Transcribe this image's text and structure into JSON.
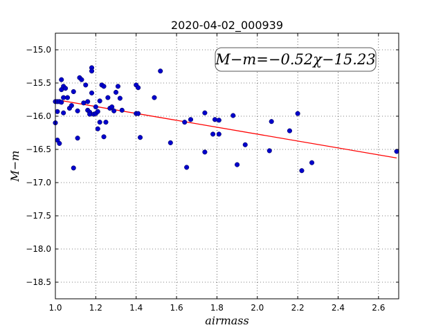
{
  "chart_data": {
    "type": "scatter",
    "title": "2020-04-02_000939",
    "xlabel": "airmass",
    "ylabel": "M−m",
    "xlim": [
      1.0,
      2.7
    ],
    "ylim": [
      -18.75,
      -14.75
    ],
    "x_ticks": [
      1.0,
      1.2,
      1.4,
      1.6,
      1.8,
      2.0,
      2.2,
      2.4,
      2.6
    ],
    "x_tick_labels": [
      "1.0",
      "1.2",
      "1.4",
      "1.6",
      "1.8",
      "2.0",
      "2.2",
      "2.4",
      "2.6"
    ],
    "y_ticks": [
      -15.0,
      -15.5,
      -16.0,
      -16.5,
      -17.0,
      -17.5,
      -18.0,
      -18.5
    ],
    "y_tick_labels": [
      "−15.0",
      "−15.5",
      "−16.0",
      "−16.5",
      "−17.0",
      "−17.5",
      "−18.0",
      "−18.5"
    ],
    "grid": true,
    "annotation": "M−m=−0.52χ−15.23",
    "fit": {
      "slope": -0.52,
      "intercept": -15.23,
      "x_range": [
        1.0,
        2.69
      ],
      "color": "#ff0000"
    },
    "marker_color": "#0000cc",
    "series": [
      {
        "x": [
          1.0,
          1.0,
          1.01,
          1.01,
          1.01,
          1.02,
          1.02,
          1.03,
          1.03,
          1.03,
          1.04,
          1.04,
          1.04,
          1.05,
          1.06,
          1.07,
          1.08,
          1.09,
          1.09,
          1.11,
          1.11,
          1.12,
          1.13,
          1.14,
          1.15,
          1.16,
          1.16,
          1.17,
          1.17,
          1.18,
          1.18,
          1.18,
          1.19,
          1.2,
          1.2,
          1.21,
          1.21,
          1.22,
          1.22,
          1.23,
          1.24,
          1.24,
          1.25,
          1.26,
          1.27,
          1.28,
          1.29,
          1.3,
          1.31,
          1.32,
          1.33,
          1.4,
          1.4,
          1.41,
          1.41,
          1.42,
          1.49,
          1.52,
          1.57,
          1.64,
          1.65,
          1.67,
          1.74,
          1.74,
          1.78,
          1.79,
          1.81,
          1.81,
          1.88,
          1.9,
          1.94,
          2.06,
          2.07,
          2.16,
          2.2,
          2.22,
          2.27,
          2.69
        ],
        "y": [
          -16.1,
          -15.78,
          -15.78,
          -15.93,
          -16.36,
          -16.41,
          -15.78,
          -15.6,
          -15.45,
          -15.79,
          -15.72,
          -15.95,
          -15.55,
          -15.58,
          -15.72,
          -15.88,
          -15.84,
          -16.78,
          -15.63,
          -15.92,
          -16.33,
          -15.42,
          -15.45,
          -15.8,
          -15.53,
          -15.78,
          -15.91,
          -15.94,
          -15.97,
          -15.27,
          -15.32,
          -15.65,
          -15.97,
          -15.86,
          -15.96,
          -16.19,
          -15.93,
          -15.77,
          -16.09,
          -15.53,
          -15.55,
          -16.31,
          -16.09,
          -15.72,
          -15.88,
          -15.86,
          -15.92,
          -15.64,
          -15.55,
          -15.73,
          -15.91,
          -15.53,
          -15.96,
          -15.57,
          -15.96,
          -16.32,
          -15.72,
          -15.32,
          -16.4,
          -16.09,
          -16.77,
          -16.05,
          -15.95,
          -16.54,
          -16.27,
          -16.05,
          -16.06,
          -16.27,
          -15.99,
          -16.73,
          -16.43,
          -16.52,
          -16.08,
          -16.22,
          -15.96,
          -16.82,
          -16.7,
          -16.53
        ]
      }
    ]
  }
}
